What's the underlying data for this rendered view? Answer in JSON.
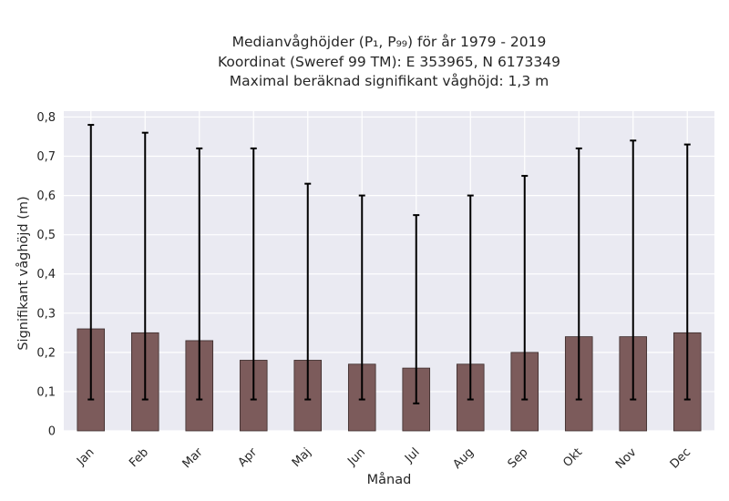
{
  "chart_data": {
    "type": "bar",
    "title_lines": [
      "Medianvåghöjder (P₁, P₉₉) för år 1979 - 2019",
      "Koordinat (Sweref 99 TM): E 353965, N 6173349",
      "Maximal beräknad signifikant våghöjd: 1,3 m"
    ],
    "xlabel": "Månad",
    "ylabel": "Signifikant våghöjd (m)",
    "categories": [
      "Jan",
      "Feb",
      "Mar",
      "Apr",
      "Maj",
      "Jun",
      "Jul",
      "Aug",
      "Sep",
      "Okt",
      "Nov",
      "Dec"
    ],
    "values": [
      0.26,
      0.25,
      0.23,
      0.18,
      0.18,
      0.17,
      0.16,
      0.17,
      0.2,
      0.24,
      0.24,
      0.25
    ],
    "error_low": [
      0.08,
      0.08,
      0.08,
      0.08,
      0.08,
      0.08,
      0.07,
      0.08,
      0.08,
      0.08,
      0.08,
      0.08
    ],
    "error_high": [
      0.78,
      0.76,
      0.72,
      0.72,
      0.63,
      0.6,
      0.55,
      0.6,
      0.65,
      0.72,
      0.74,
      0.73
    ],
    "ylim": [
      0,
      0.815
    ],
    "yticks": [
      0,
      0.1,
      0.2,
      0.3,
      0.4,
      0.5,
      0.6,
      0.7,
      0.8
    ],
    "ytick_labels": [
      "0",
      "0,1",
      "0,2",
      "0,3",
      "0,4",
      "0,5",
      "0,6",
      "0,7",
      "0,8"
    ],
    "grid": true,
    "colors": {
      "bar": "#7c5b5b",
      "bar_edge": "#3a2a2a",
      "error": "#000000",
      "plot_bg": "#eaeaf2",
      "grid": "#ffffff"
    }
  }
}
